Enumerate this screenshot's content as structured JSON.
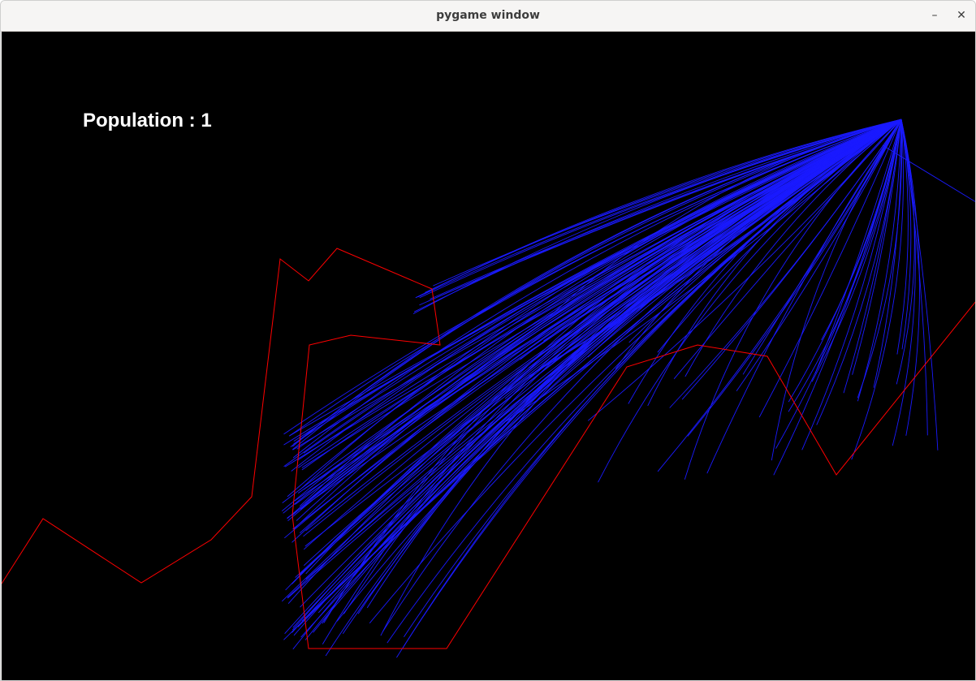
{
  "window": {
    "title": "pygame window",
    "minimize_glyph": "–",
    "close_glyph": "✕"
  },
  "hud": {
    "population_text": "Population : 1"
  },
  "colors": {
    "background": "#000000",
    "track": "#ff0000",
    "rays": "#1a1aff",
    "hud_text": "#ffffff"
  }
}
